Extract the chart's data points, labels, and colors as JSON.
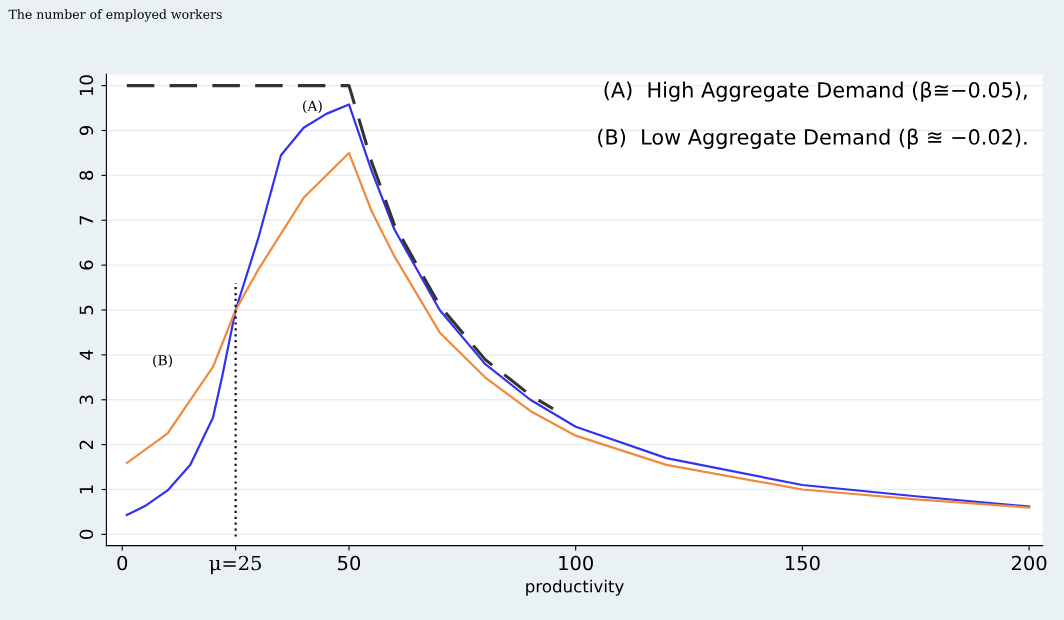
{
  "chart_data": {
    "type": "line",
    "xlabel": "productivity",
    "ylabel": "The number of employed workers",
    "xlim": [
      -3.5,
      203
    ],
    "ylim": [
      -0.25,
      10.25
    ],
    "xticks": [
      0,
      {
        "value": 25,
        "label": "μ=25"
      },
      50,
      100,
      150,
      200
    ],
    "yticks": [
      0,
      1,
      2,
      3,
      4,
      5,
      6,
      7,
      8,
      9,
      10
    ],
    "grid": "y",
    "legend": false,
    "marker": "none",
    "series": [
      {
        "color": "#3333ee",
        "line_style": "solid",
        "x": [
          1,
          5,
          10,
          15,
          20,
          22,
          25,
          30,
          35,
          40,
          45,
          50,
          55,
          60,
          70,
          80,
          90,
          100,
          120,
          150,
          175,
          200
        ],
        "values": [
          0.43,
          0.63,
          0.98,
          1.55,
          2.6,
          3.5,
          5.0,
          6.6,
          8.45,
          9.06,
          9.37,
          9.58,
          8.1,
          6.8,
          5.0,
          3.8,
          3.0,
          2.4,
          1.7,
          1.1,
          0.85,
          0.62
        ]
      },
      {
        "color": "#f08a3c",
        "line_style": "solid",
        "x": [
          1,
          10,
          20,
          25,
          30,
          40,
          50,
          55,
          60,
          70,
          80,
          90,
          100,
          120,
          150,
          175,
          200
        ],
        "values": [
          1.59,
          2.25,
          3.73,
          5.0,
          5.9,
          7.5,
          8.5,
          7.2,
          6.2,
          4.5,
          3.5,
          2.75,
          2.2,
          1.55,
          1.0,
          0.78,
          0.6
        ]
      },
      {
        "color": "#333333",
        "line_style": "dashed",
        "x": [
          1,
          50,
          55,
          60,
          70,
          80,
          90,
          95
        ],
        "values": [
          10,
          10,
          8.3,
          6.9,
          5.1,
          3.9,
          3.1,
          2.8
        ]
      },
      {
        "color": "#111111",
        "line_style": "dotted",
        "x": [
          25,
          25
        ],
        "values": [
          -0.05,
          5.6
        ]
      }
    ],
    "annotations": [
      "(A)",
      "(B)",
      "(A)  High Aggregate Demand (β≅−0.05),",
      "(B)  Low Aggregate Demand (β ≊ −0.02)."
    ]
  }
}
